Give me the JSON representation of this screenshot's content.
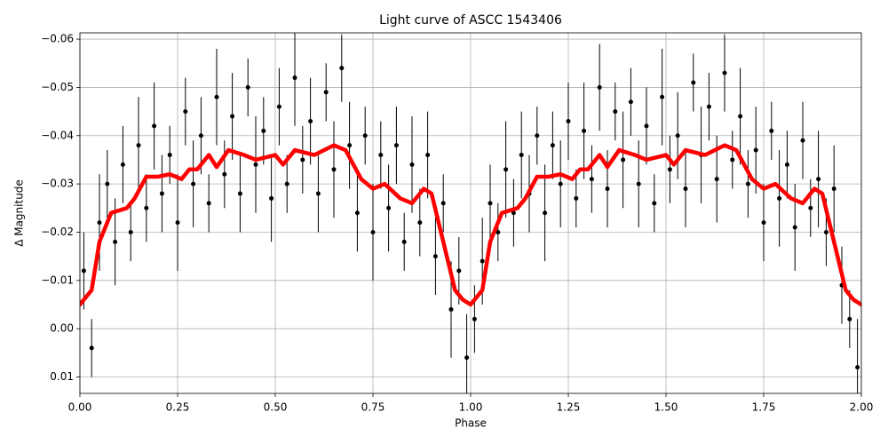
{
  "chart_data": {
    "type": "errorbar",
    "title": "Light curve of ASCC 1543406",
    "x_label": "Phase",
    "y_label": "Δ Magnitude",
    "xlim": [
      0,
      2
    ],
    "ylim": [
      0.0134,
      -0.0613
    ],
    "grid": true,
    "xticks": [
      {
        "value": 0,
        "label": "0.00"
      },
      {
        "value": 0.25,
        "label": "0.25"
      },
      {
        "value": 0.5,
        "label": "0.50"
      },
      {
        "value": 0.75,
        "label": "0.75"
      },
      {
        "value": 1,
        "label": "1.00"
      },
      {
        "value": 1.25,
        "label": "1.25"
      },
      {
        "value": 1.5,
        "label": "1.50"
      },
      {
        "value": 1.75,
        "label": "1.75"
      },
      {
        "value": 2,
        "label": "2.00"
      }
    ],
    "yticks": [
      {
        "value": 0.01,
        "label": "0.01"
      },
      {
        "value": 0,
        "label": "0.00"
      },
      {
        "value": -0.01,
        "label": "−0.01"
      },
      {
        "value": -0.02,
        "label": "−0.02"
      },
      {
        "value": -0.03,
        "label": "−0.03"
      },
      {
        "value": -0.04,
        "label": "−0.04"
      },
      {
        "value": -0.05,
        "label": "−0.05"
      },
      {
        "value": -0.06,
        "label": "−0.06"
      }
    ],
    "series": [
      {
        "type": "errorbar",
        "color": "#000000",
        "x": [
          0.01,
          0.03,
          0.05,
          0.07,
          0.09,
          0.11,
          0.13,
          0.15,
          0.17,
          0.19,
          0.21,
          0.23,
          0.25,
          0.27,
          0.29,
          0.31,
          0.33,
          0.35,
          0.37,
          0.39,
          0.41,
          0.43,
          0.45,
          0.47,
          0.49,
          0.51,
          0.53,
          0.55,
          0.57,
          0.59,
          0.61,
          0.63,
          0.65,
          0.67,
          0.69,
          0.71,
          0.73,
          0.75,
          0.77,
          0.79,
          0.81,
          0.83,
          0.85,
          0.87,
          0.89,
          0.91,
          0.93,
          0.95,
          0.97,
          0.99,
          1.01,
          1.03,
          1.05,
          1.07,
          1.09,
          1.11,
          1.13,
          1.15,
          1.17,
          1.19,
          1.21,
          1.23,
          1.25,
          1.27,
          1.29,
          1.31,
          1.33,
          1.35,
          1.37,
          1.39,
          1.41,
          1.43,
          1.45,
          1.47,
          1.49,
          1.51,
          1.53,
          1.55,
          1.57,
          1.59,
          1.61,
          1.63,
          1.65,
          1.67,
          1.69,
          1.71,
          1.73,
          1.75,
          1.77,
          1.79,
          1.81,
          1.83,
          1.85,
          1.87,
          1.89,
          1.91,
          1.93,
          1.95,
          1.97,
          1.99
        ],
        "values": [
          -0.012,
          0.004,
          -0.022,
          -0.03,
          -0.018,
          -0.034,
          -0.02,
          -0.038,
          -0.025,
          -0.042,
          -0.028,
          -0.036,
          -0.022,
          -0.045,
          -0.03,
          -0.04,
          -0.026,
          -0.048,
          -0.032,
          -0.044,
          -0.028,
          -0.05,
          -0.034,
          -0.041,
          -0.027,
          -0.046,
          -0.03,
          -0.052,
          -0.035,
          -0.043,
          -0.028,
          -0.049,
          -0.033,
          -0.054,
          -0.038,
          -0.024,
          -0.04,
          -0.02,
          -0.036,
          -0.025,
          -0.038,
          -0.018,
          -0.034,
          -0.022,
          -0.036,
          -0.015,
          -0.026,
          -0.004,
          -0.012,
          0.006,
          -0.002,
          -0.014,
          -0.026,
          -0.02,
          -0.033,
          -0.024,
          -0.036,
          -0.028,
          -0.04,
          -0.024,
          -0.038,
          -0.03,
          -0.043,
          -0.027,
          -0.041,
          -0.031,
          -0.05,
          -0.029,
          -0.045,
          -0.035,
          -0.047,
          -0.03,
          -0.042,
          -0.026,
          -0.048,
          -0.033,
          -0.04,
          -0.029,
          -0.051,
          -0.036,
          -0.046,
          -0.031,
          -0.053,
          -0.035,
          -0.044,
          -0.03,
          -0.037,
          -0.022,
          -0.041,
          -0.027,
          -0.034,
          -0.021,
          -0.039,
          -0.025,
          -0.031,
          -0.02,
          -0.029,
          -0.009,
          -0.002,
          0.008
        ],
        "errors": [
          0.008,
          0.006,
          0.01,
          0.007,
          0.009,
          0.008,
          0.006,
          0.01,
          0.007,
          0.009,
          0.008,
          0.006,
          0.01,
          0.007,
          0.009,
          0.008,
          0.006,
          0.01,
          0.007,
          0.009,
          0.008,
          0.006,
          0.01,
          0.007,
          0.009,
          0.008,
          0.006,
          0.01,
          0.007,
          0.009,
          0.008,
          0.006,
          0.01,
          0.007,
          0.009,
          0.008,
          0.006,
          0.01,
          0.007,
          0.009,
          0.008,
          0.006,
          0.01,
          0.007,
          0.009,
          0.008,
          0.006,
          0.01,
          0.007,
          0.009,
          0.007,
          0.009,
          0.008,
          0.006,
          0.01,
          0.007,
          0.009,
          0.008,
          0.006,
          0.01,
          0.007,
          0.009,
          0.008,
          0.006,
          0.01,
          0.007,
          0.009,
          0.008,
          0.006,
          0.01,
          0.007,
          0.009,
          0.008,
          0.006,
          0.01,
          0.007,
          0.009,
          0.008,
          0.006,
          0.01,
          0.007,
          0.009,
          0.008,
          0.006,
          0.01,
          0.007,
          0.009,
          0.008,
          0.006,
          0.01,
          0.007,
          0.009,
          0.008,
          0.006,
          0.01,
          0.007,
          0.009,
          0.008,
          0.006,
          0.01
        ]
      },
      {
        "type": "line",
        "color": "#ff0000",
        "x": [
          0,
          0.03,
          0.05,
          0.08,
          0.12,
          0.14,
          0.17,
          0.2,
          0.23,
          0.26,
          0.28,
          0.3,
          0.33,
          0.35,
          0.38,
          0.42,
          0.45,
          0.5,
          0.52,
          0.55,
          0.6,
          0.65,
          0.68,
          0.72,
          0.75,
          0.78,
          0.82,
          0.85,
          0.88,
          0.9,
          0.93,
          0.96,
          0.98,
          1,
          1.03,
          1.05,
          1.08,
          1.12,
          1.14,
          1.17,
          1.2,
          1.23,
          1.26,
          1.28,
          1.3,
          1.33,
          1.35,
          1.38,
          1.42,
          1.45,
          1.5,
          1.52,
          1.55,
          1.6,
          1.65,
          1.68,
          1.72,
          1.75,
          1.78,
          1.82,
          1.85,
          1.88,
          1.9,
          1.93,
          1.96,
          1.98,
          2
        ],
        "values": [
          -0.005,
          -0.008,
          -0.018,
          -0.024,
          -0.025,
          -0.027,
          -0.0315,
          -0.0315,
          -0.032,
          -0.031,
          -0.033,
          -0.033,
          -0.036,
          -0.0335,
          -0.037,
          -0.036,
          -0.035,
          -0.036,
          -0.034,
          -0.037,
          -0.036,
          -0.038,
          -0.037,
          -0.031,
          -0.029,
          -0.03,
          -0.027,
          -0.026,
          -0.029,
          -0.028,
          -0.018,
          -0.008,
          -0.006,
          -0.005,
          -0.008,
          -0.018,
          -0.024,
          -0.025,
          -0.027,
          -0.0315,
          -0.0315,
          -0.032,
          -0.031,
          -0.033,
          -0.033,
          -0.036,
          -0.0335,
          -0.037,
          -0.036,
          -0.035,
          -0.036,
          -0.034,
          -0.037,
          -0.036,
          -0.038,
          -0.037,
          -0.031,
          -0.029,
          -0.03,
          -0.027,
          -0.026,
          -0.029,
          -0.028,
          -0.018,
          -0.008,
          -0.006,
          -0.005
        ]
      }
    ]
  }
}
